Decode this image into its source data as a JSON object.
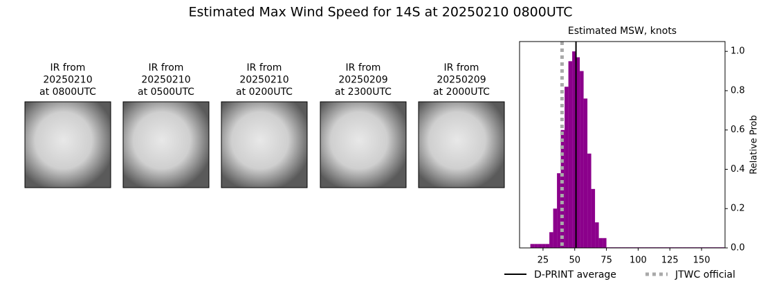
{
  "title": "Estimated Max Wind Speed for 14S at 20250210 0800UTC",
  "panels": [
    {
      "lines": [
        "IR from",
        "20250210",
        "at 0800UTC"
      ]
    },
    {
      "lines": [
        "IR from",
        "20250210",
        "at 0500UTC"
      ]
    },
    {
      "lines": [
        "IR from",
        "20250210",
        "at 0200UTC"
      ]
    },
    {
      "lines": [
        "IR from",
        "20250209",
        "at 2300UTC"
      ]
    },
    {
      "lines": [
        "IR from",
        "20250209",
        "at 2000UTC"
      ]
    }
  ],
  "chart_data": {
    "type": "histogram",
    "title": "Estimated MSW, knots",
    "y_label": "Relative Prob",
    "color": "#8b008b",
    "bins": [
      15,
      18,
      21,
      24,
      27,
      30,
      33,
      36,
      39,
      42,
      45,
      48,
      51,
      54,
      57,
      60,
      63,
      66,
      69,
      72,
      75,
      78,
      81,
      84,
      87,
      90,
      93,
      96,
      99,
      102,
      105,
      108,
      111,
      114,
      117,
      120,
      123,
      126,
      129,
      132,
      135,
      138,
      141,
      144,
      147,
      150,
      153,
      156,
      159,
      162,
      165,
      168
    ],
    "values": [
      0.02,
      0.02,
      0.02,
      0.02,
      0.02,
      0.08,
      0.2,
      0.38,
      0.6,
      0.82,
      0.95,
      1.0,
      0.97,
      0.9,
      0.76,
      0.48,
      0.3,
      0.13,
      0.05,
      0.05,
      0.003,
      0.003,
      0.003,
      0.003,
      0.003,
      0.003,
      0.003,
      0.003,
      0.003,
      0.003,
      0.003,
      0.003,
      0.003,
      0.003,
      0.003,
      0.003,
      0.003,
      0.003,
      0.003,
      0.003,
      0.003,
      0.003,
      0.003,
      0.003,
      0.003,
      0.003,
      0.003,
      0.003,
      0.003,
      0.003,
      0.003
    ],
    "lines": [
      {
        "name": "D-PRINT average",
        "value": 51,
        "color": "#000000",
        "style": "solid"
      },
      {
        "name": "JTWC official",
        "value": 40,
        "color": "#a9a9a9",
        "style": "dotted"
      }
    ],
    "xlim": [
      6.5,
      168.5
    ],
    "xticks": [
      25,
      50,
      75,
      100,
      125,
      150
    ],
    "ylim": [
      0,
      1.05
    ],
    "yticks": [
      {
        "value": 0,
        "label": "0.0"
      },
      {
        "value": 0.2,
        "label": "0.2"
      },
      {
        "value": 0.4,
        "label": "0.4"
      },
      {
        "value": 0.6,
        "label": "0.6"
      },
      {
        "value": 0.8,
        "label": "0.8"
      },
      {
        "value": 1,
        "label": "1.0"
      }
    ]
  }
}
